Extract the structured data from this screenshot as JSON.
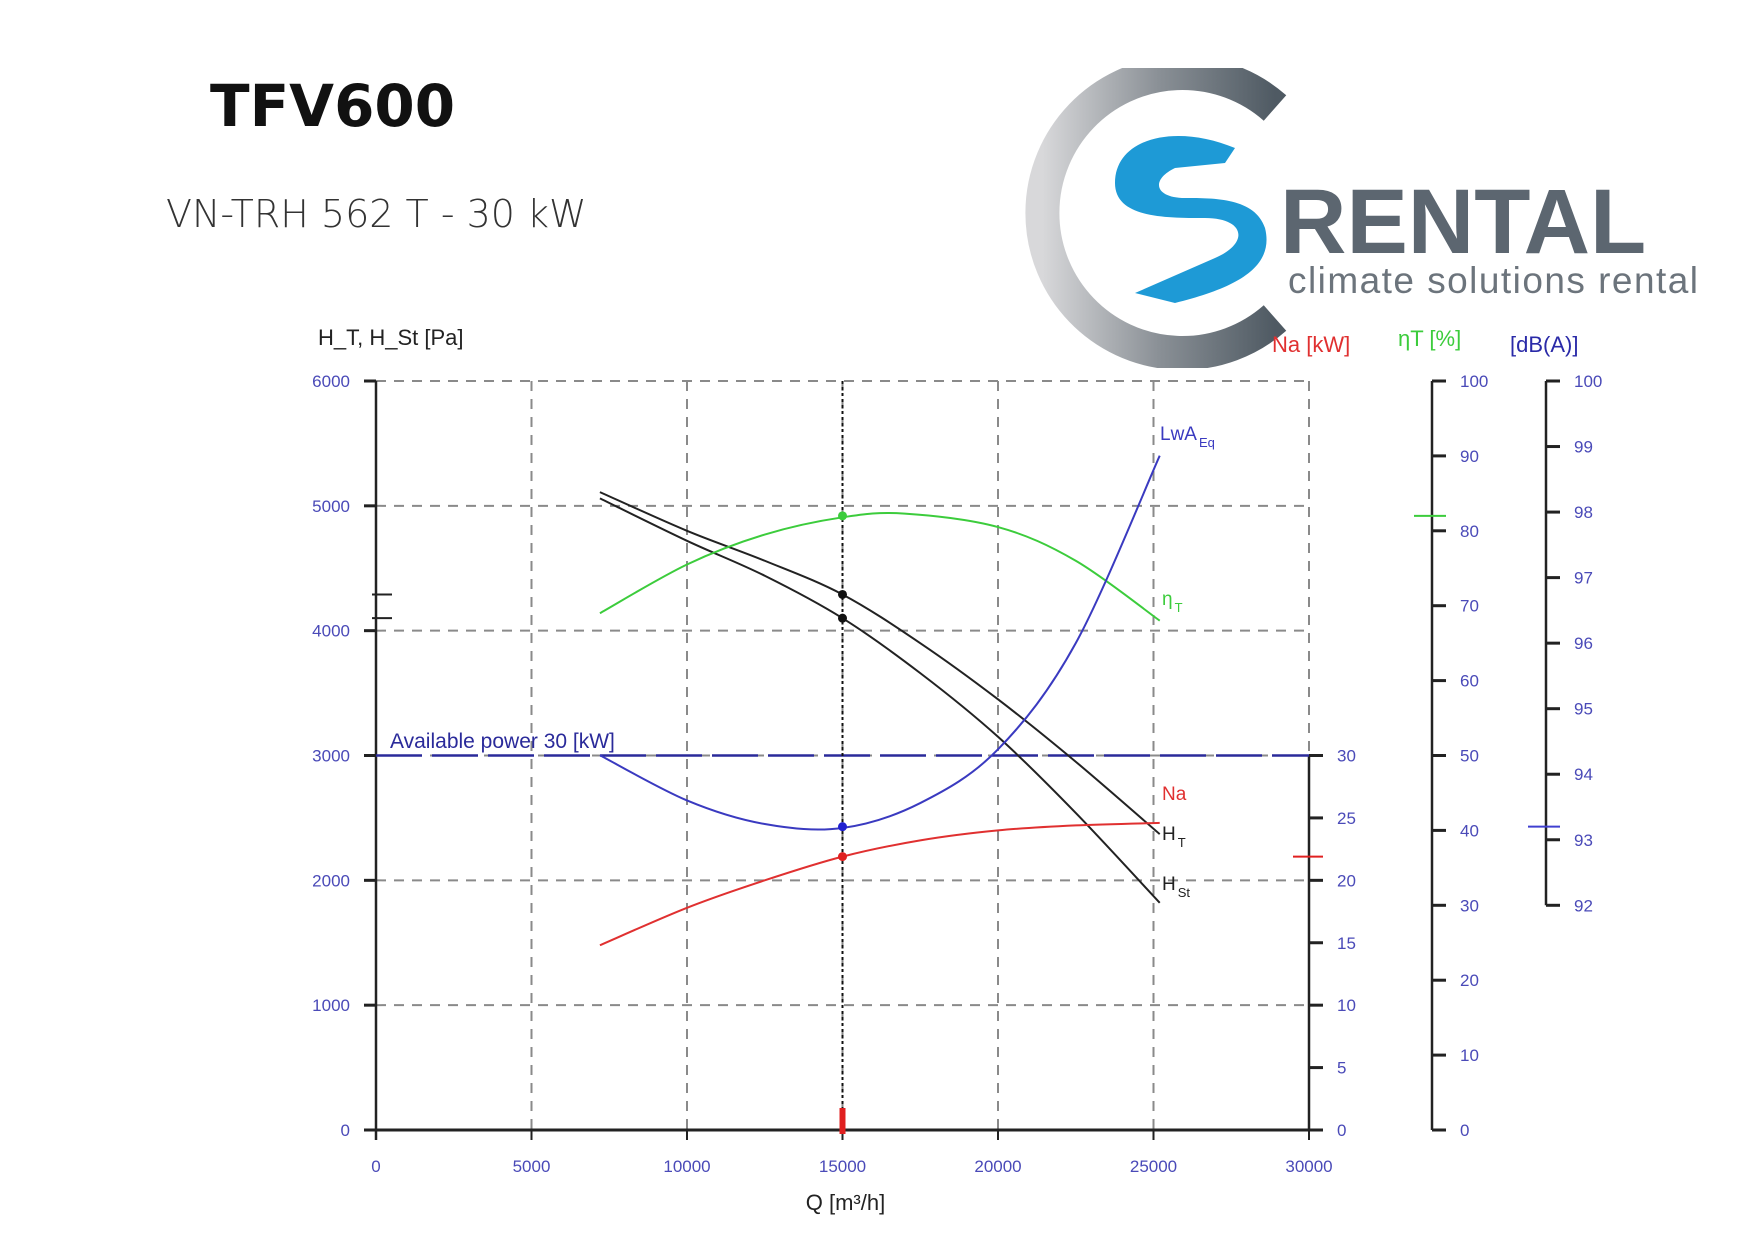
{
  "header": {
    "title": "TFV600",
    "subtitle": "VN-TRH 562 T - 30 kW"
  },
  "logo": {
    "brand": "RENTAL",
    "tagline": "climate solutions rental",
    "colors": {
      "blue": "#1e9ad6",
      "gray": "#5c6670"
    }
  },
  "chart_data": {
    "type": "line",
    "xlabel": "Q [m³/h]",
    "x_ticks": [
      0,
      5000,
      10000,
      15000,
      20000,
      25000,
      30000
    ],
    "xlim": [
      0,
      30000
    ],
    "axes": {
      "pressure": {
        "label": "H_T, H_St [Pa]",
        "ylim": [
          0,
          6000
        ],
        "ticks": [
          0,
          1000,
          2000,
          3000,
          4000,
          5000,
          6000
        ]
      },
      "power": {
        "label": "Na [kW]",
        "ylim": [
          0,
          60
        ],
        "ticks": [
          0,
          5,
          10,
          15,
          20,
          25,
          30
        ],
        "color": "#e03030"
      },
      "efficiency": {
        "label": "ηT [%]",
        "ylim": [
          0,
          100
        ],
        "ticks": [
          0,
          10,
          20,
          30,
          40,
          50,
          60,
          70,
          80,
          90,
          100
        ],
        "color": "#3ccc3c"
      },
      "sound": {
        "label": "[dB(A)]",
        "ylim": [
          92,
          100
        ],
        "ticks": [
          92,
          93,
          94,
          95,
          96,
          97,
          98,
          99,
          100
        ],
        "color": "#2a2aa8"
      }
    },
    "grid": true,
    "operating_point": {
      "Q": 15000,
      "H_T": 4290,
      "H_St": 4100,
      "eta_T": 82,
      "Na": 21.9,
      "LwAEq": 93.2
    },
    "available_power": {
      "label": "Available power 30 [kW]",
      "value": 30
    },
    "series": [
      {
        "name": "H_T",
        "label": "H",
        "sub": "T",
        "axis": "pressure",
        "color": "#222222",
        "x": [
          7200,
          10000,
          12500,
          15000,
          17500,
          20000,
          22500,
          25200
        ],
        "y": [
          5110,
          4800,
          4560,
          4290,
          3900,
          3450,
          2950,
          2370
        ]
      },
      {
        "name": "H_St",
        "label": "H",
        "sub": "St",
        "axis": "pressure",
        "color": "#222222",
        "x": [
          7200,
          10000,
          12500,
          15000,
          17500,
          20000,
          22500,
          25200
        ],
        "y": [
          5060,
          4720,
          4440,
          4100,
          3660,
          3150,
          2540,
          1820
        ]
      },
      {
        "name": "eta_T",
        "label": "η",
        "sub": "T",
        "axis": "efficiency",
        "color": "#3ccc3c",
        "x": [
          7200,
          10000,
          12500,
          15000,
          17000,
          20000,
          22500,
          25200
        ],
        "y": [
          69,
          75.5,
          79.5,
          81.8,
          82.3,
          80.5,
          76,
          68
        ]
      },
      {
        "name": "Na",
        "label": "Na",
        "sub": "",
        "axis": "power",
        "color": "#e03030",
        "x": [
          7200,
          10000,
          12500,
          15000,
          17500,
          20000,
          22500,
          25200
        ],
        "y": [
          14.8,
          17.8,
          20,
          21.9,
          23.2,
          24,
          24.4,
          24.6
        ]
      },
      {
        "name": "LwAEq",
        "label": "LwA",
        "sub": "Eq",
        "axis": "sound",
        "color": "#3a3ac0",
        "x": [
          7200,
          10000,
          12500,
          15000,
          17500,
          20000,
          22500,
          25200
        ],
        "y": [
          94.29,
          93.6,
          93.24,
          93.18,
          93.56,
          94.38,
          96.0,
          98.86
        ]
      }
    ]
  }
}
